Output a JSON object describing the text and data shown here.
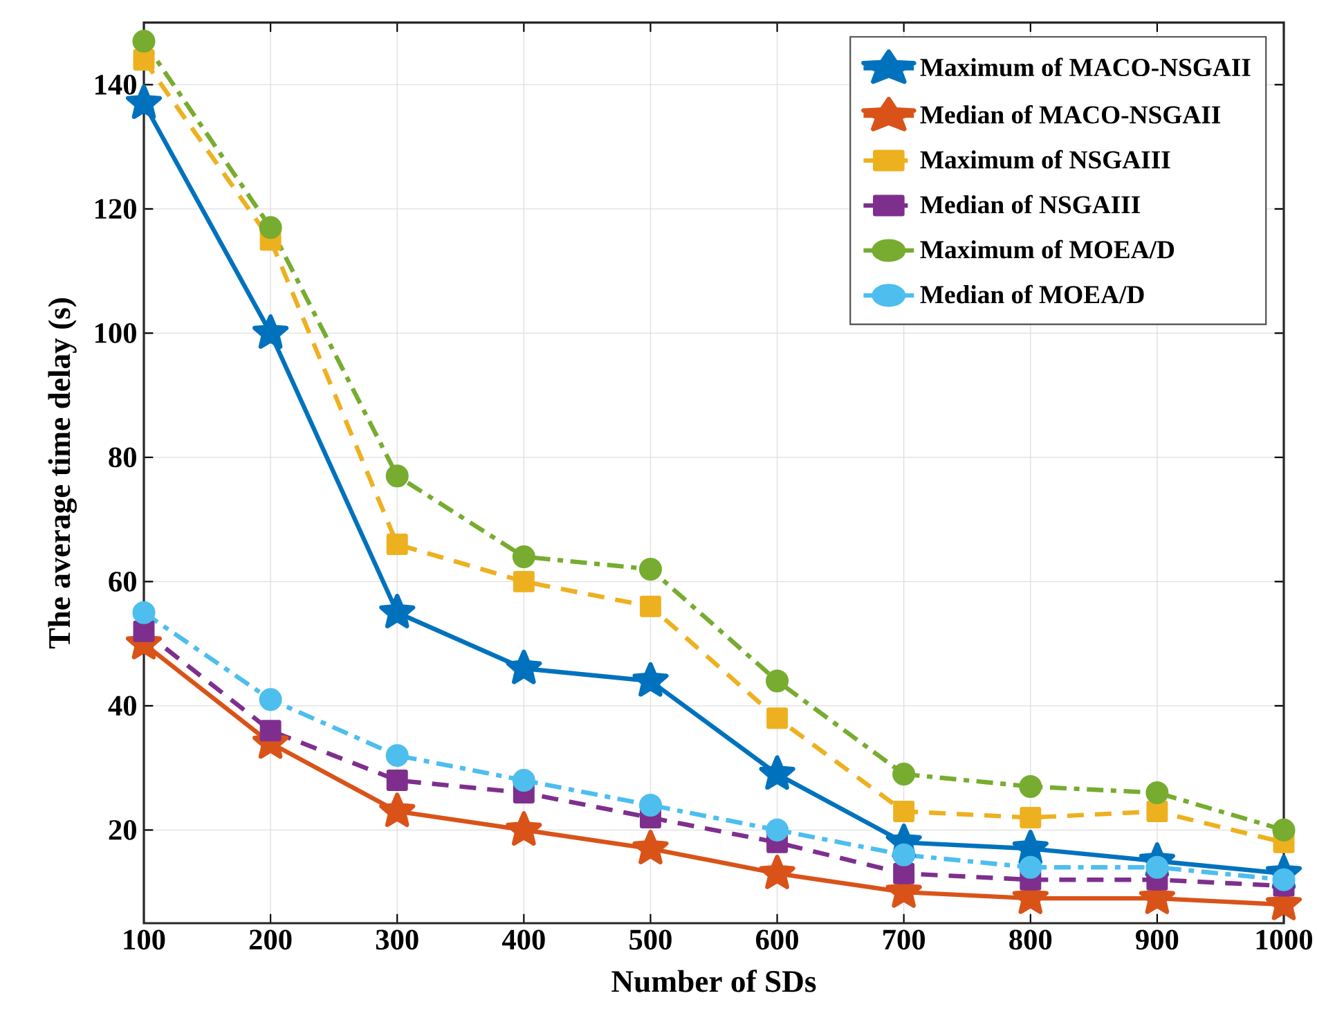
{
  "chart_data": {
    "type": "line",
    "xlabel": "Number of SDs",
    "ylabel": "The average time delay (s)",
    "x": [
      100,
      200,
      300,
      400,
      500,
      600,
      700,
      800,
      900,
      1000
    ],
    "xlim": [
      100,
      1000
    ],
    "xticks": [
      100,
      200,
      300,
      400,
      500,
      600,
      700,
      800,
      900,
      1000
    ],
    "ylim": [
      5,
      150
    ],
    "yticks": [
      20,
      40,
      60,
      80,
      100,
      120,
      140
    ],
    "grid": true,
    "legend": "top right",
    "series": [
      {
        "name": "Maximum of MACO-NSGAII",
        "color": "#0072bd",
        "marker": "star",
        "line_style": "solid",
        "values": [
          137,
          100,
          55,
          46,
          44,
          29,
          18,
          17,
          15,
          13
        ]
      },
      {
        "name": "Median of MACO-NSGAII",
        "color": "#d95319",
        "marker": "star",
        "line_style": "solid",
        "values": [
          50,
          34,
          23,
          20,
          17,
          13,
          10,
          9,
          9,
          8
        ]
      },
      {
        "name": "Maximum of NSGAIII",
        "color": "#edb120",
        "marker": "square",
        "line_style": "dashed",
        "values": [
          144,
          115,
          66,
          60,
          56,
          38,
          23,
          22,
          23,
          18
        ]
      },
      {
        "name": "Median of NSGAIII",
        "color": "#7e2f8e",
        "marker": "square",
        "line_style": "dashed",
        "values": [
          52,
          36,
          28,
          26,
          22,
          18,
          13,
          12,
          12,
          11
        ]
      },
      {
        "name": "Maximum of MOEA/D",
        "color": "#77ac30",
        "marker": "circle",
        "line_style": "dashdot",
        "values": [
          147,
          117,
          77,
          64,
          62,
          44,
          29,
          27,
          26,
          20
        ]
      },
      {
        "name": "Median of MOEA/D",
        "color": "#4dbeee",
        "marker": "circle",
        "line_style": "dashdot",
        "values": [
          55,
          41,
          32,
          28,
          24,
          20,
          16,
          14,
          14,
          12
        ]
      }
    ]
  }
}
